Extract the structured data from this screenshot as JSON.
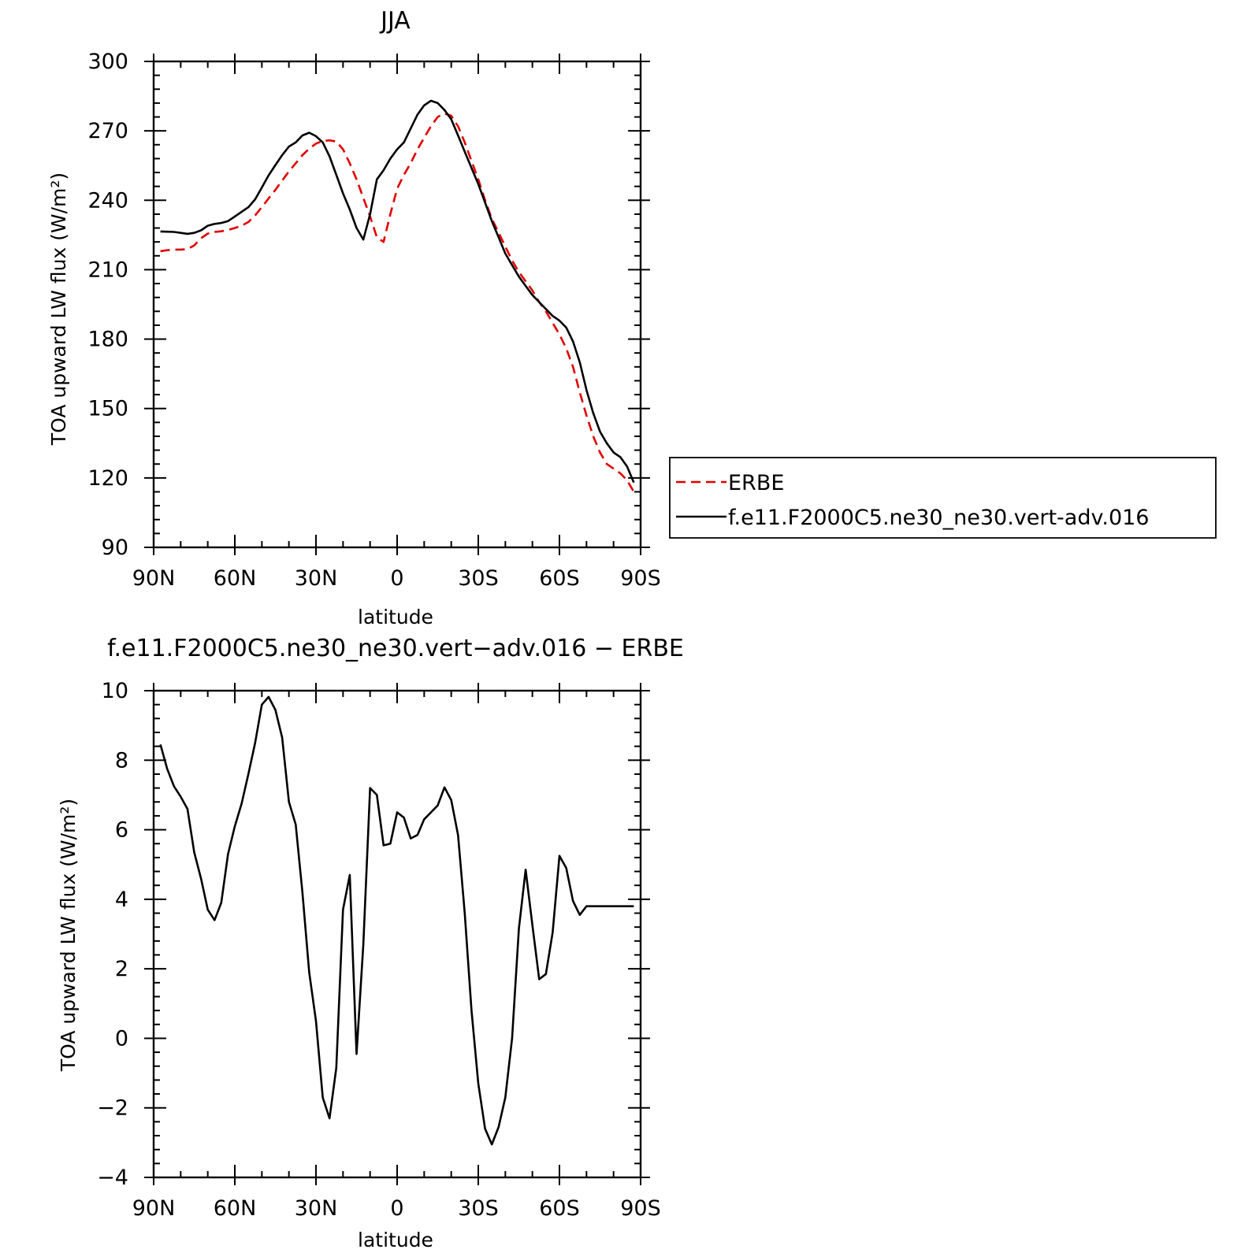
{
  "chart_data": [
    {
      "type": "line",
      "title": "JJA",
      "xlabel": "latitude",
      "ylabel": "TOA upward LW flux (W/m²)",
      "xlim": [
        -90,
        90
      ],
      "ylim": [
        90,
        300
      ],
      "xticks": [
        -90,
        -60,
        -30,
        0,
        30,
        60,
        90
      ],
      "xtick_labels": [
        "90N",
        "60N",
        "30N",
        "0",
        "30S",
        "60S",
        "90S"
      ],
      "yticks": [
        90,
        120,
        150,
        180,
        210,
        240,
        270,
        300
      ],
      "ytick_labels": [
        "90",
        "120",
        "150",
        "180",
        "210",
        "240",
        "270",
        "300"
      ],
      "legend_position": "right",
      "series": [
        {
          "name": "ERBE",
          "color": "#e00000",
          "dash": "dashed",
          "x": [
            -87.5,
            -85,
            -82.5,
            -80,
            -77.5,
            -75,
            -72.5,
            -70,
            -67.5,
            -65,
            -62.5,
            -60,
            -57.5,
            -55,
            -52.5,
            -50,
            -47.5,
            -45,
            -42.5,
            -40,
            -37.5,
            -35,
            -32.5,
            -30,
            -27.5,
            -25,
            -22.5,
            -20,
            -17.5,
            -15,
            -12.5,
            -10,
            -7.5,
            -5,
            -2.5,
            0,
            2.5,
            5,
            7.5,
            10,
            12.5,
            15,
            17.5,
            20,
            22.5,
            25,
            27.5,
            30,
            32.5,
            35,
            37.5,
            40,
            42.5,
            45,
            47.5,
            50,
            52.5,
            55,
            57.5,
            60,
            62.5,
            65,
            67.5,
            70,
            72.5,
            75,
            77.5,
            80,
            82.5,
            85,
            87.5
          ],
          "y": [
            218.0,
            218.4,
            218.7,
            218.7,
            218.9,
            220.5,
            223.6,
            225.6,
            226.3,
            226.6,
            227.2,
            228.0,
            229.0,
            230.6,
            233.5,
            237.0,
            240.8,
            244.5,
            248.5,
            252.5,
            256.0,
            259.5,
            262.3,
            264.5,
            265.6,
            265.9,
            265.4,
            262.0,
            256.0,
            249.0,
            241.0,
            233.0,
            224.0,
            222.0,
            234.0,
            245.0,
            251.0,
            256.0,
            262.0,
            267.0,
            272.0,
            276.0,
            277.5,
            276.5,
            272.0,
            265.0,
            257.0,
            249.0,
            240.0,
            232.0,
            226.0,
            220.0,
            214.0,
            209.0,
            205.0,
            201.0,
            196.0,
            192.0,
            187.0,
            182.0,
            176.0,
            168.0,
            157.0,
            147.0,
            138.0,
            131.0,
            126.0,
            124.0,
            122.0,
            119.0,
            114.0
          ]
        },
        {
          "name": "f.e11.F2000C5.ne30_ne30.vert-adv.016",
          "color": "#000000",
          "dash": "solid",
          "x": [
            -87.5,
            -85,
            -82.5,
            -80,
            -77.5,
            -75,
            -72.5,
            -70,
            -67.5,
            -65,
            -62.5,
            -60,
            -57.5,
            -55,
            -52.5,
            -50,
            -47.5,
            -45,
            -42.5,
            -40,
            -37.5,
            -35,
            -32.5,
            -30,
            -27.5,
            -25,
            -22.5,
            -20,
            -17.5,
            -15,
            -12.5,
            -10,
            -7.5,
            -5,
            -2.5,
            0,
            2.5,
            5,
            7.5,
            10,
            12.5,
            15,
            17.5,
            20,
            22.5,
            25,
            27.5,
            30,
            32.5,
            35,
            37.5,
            40,
            42.5,
            45,
            47.5,
            50,
            52.5,
            55,
            57.5,
            60,
            62.5,
            65,
            67.5,
            70,
            72.5,
            75,
            77.5,
            80,
            82.5,
            85,
            87.5
          ],
          "y": [
            226.5,
            226.4,
            226.3,
            225.9,
            225.5,
            225.9,
            227.0,
            229.0,
            229.8,
            230.2,
            231.0,
            233.0,
            235.0,
            237.0,
            240.4,
            245.5,
            250.8,
            255.2,
            259.5,
            263.2,
            265.0,
            268.0,
            269.2,
            267.7,
            265.0,
            259.0,
            251.0,
            243.0,
            236.0,
            228.0,
            223.0,
            234.0,
            249.0,
            253.0,
            258.0,
            262.0,
            265.0,
            271.0,
            277.0,
            281.0,
            283.0,
            282.0,
            279.0,
            275.0,
            268.0,
            261.0,
            254.0,
            247.0,
            239.0,
            231.0,
            224.0,
            217.0,
            212.0,
            207.0,
            203.0,
            199.0,
            196.0,
            193.0,
            190.0,
            188.0,
            185.0,
            179.0,
            170.0,
            158.0,
            148.0,
            140.0,
            135.0,
            131.0,
            129.0,
            125.0,
            118.0
          ]
        }
      ]
    },
    {
      "type": "line",
      "title": "f.e11.F2000C5.ne30_ne30.vert−adv.016 − ERBE",
      "xlabel": "latitude",
      "ylabel": "TOA upward LW flux (W/m²)",
      "xlim": [
        -90,
        90
      ],
      "ylim": [
        -4,
        10
      ],
      "xticks": [
        -90,
        -60,
        -30,
        0,
        30,
        60,
        90
      ],
      "xtick_labels": [
        "90N",
        "60N",
        "30N",
        "0",
        "30S",
        "60S",
        "90S"
      ],
      "yticks": [
        -4,
        -2,
        0,
        2,
        4,
        6,
        8,
        10
      ],
      "ytick_labels": [
        "−4",
        "−2",
        "0",
        "2",
        "4",
        "6",
        "8",
        "10"
      ],
      "series": [
        {
          "color": "#000000",
          "dash": "solid",
          "x": [
            -87.5,
            -85,
            -82.5,
            -80,
            -77.5,
            -75,
            -72.5,
            -70,
            -67.5,
            -65,
            -62.5,
            -60,
            -57.5,
            -55,
            -52.5,
            -50,
            -47.5,
            -45,
            -42.5,
            -40,
            -37.5,
            -35,
            -32.5,
            -30,
            -27.5,
            -25,
            -22.5,
            -20,
            -17.5,
            -15,
            -12.5,
            -10,
            -7.5,
            -5,
            -2.5,
            0,
            2.5,
            5,
            7.5,
            10,
            12.5,
            15,
            17.5,
            20,
            22.5,
            25,
            27.5,
            30,
            32.5,
            35,
            37.5,
            40,
            42.5,
            45,
            47.5,
            50,
            52.5,
            55,
            57.5,
            60,
            62.5,
            65,
            67.5,
            70,
            72.5,
            75,
            77.5,
            80,
            82.5,
            85,
            87.5
          ],
          "y": [
            8.45,
            7.75,
            7.25,
            6.95,
            6.6,
            5.35,
            4.6,
            3.7,
            3.4,
            3.9,
            5.3,
            6.1,
            6.75,
            7.6,
            8.5,
            9.6,
            9.82,
            9.45,
            8.65,
            6.8,
            6.15,
            4.2,
            1.9,
            0.5,
            -1.7,
            -2.3,
            -0.85,
            3.7,
            4.7,
            -0.45,
            2.7,
            7.2,
            7.0,
            5.55,
            5.6,
            6.5,
            6.35,
            5.75,
            5.85,
            6.3,
            6.5,
            6.7,
            7.22,
            6.85,
            5.85,
            3.6,
            0.8,
            -1.3,
            -2.6,
            -3.05,
            -2.55,
            -1.7,
            0.0,
            3.15,
            4.85,
            3.25,
            1.7,
            1.85,
            3.05,
            5.25,
            4.9,
            3.95,
            3.55,
            3.8,
            3.8,
            3.8,
            3.8,
            3.8,
            3.8,
            3.8,
            3.8
          ]
        }
      ]
    }
  ]
}
